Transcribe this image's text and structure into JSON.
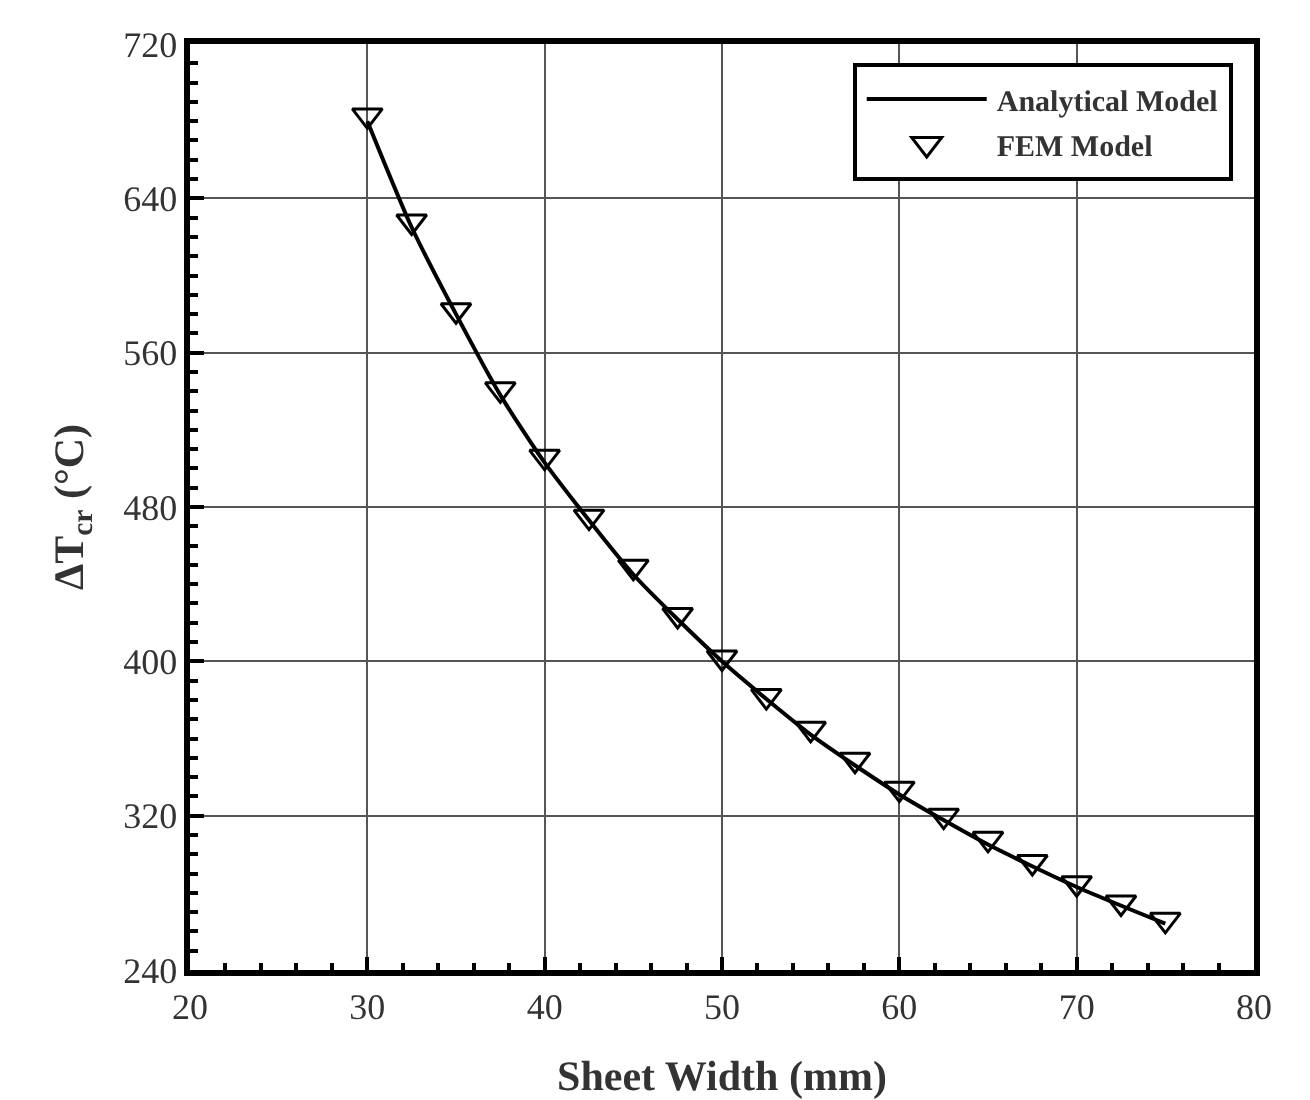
{
  "chart_data": {
    "type": "line",
    "xlabel": "Sheet Width (mm)",
    "ylabel": "ΔT$_{cr}$ (°C)",
    "xlim": [
      20,
      80
    ],
    "xticks": [
      20,
      30,
      40,
      50,
      60,
      70,
      80
    ],
    "ylim": [
      240,
      720
    ],
    "yticks": [
      240,
      320,
      400,
      480,
      560,
      640,
      720
    ],
    "grid": true,
    "legend": "top right",
    "series": [
      {
        "name": "Analytical Model",
        "color": "#000000",
        "marker": "none",
        "line_style": "solid",
        "x": [
          30,
          32.5,
          35,
          37.5,
          40,
          45,
          50,
          55,
          60,
          65,
          70,
          75
        ],
        "values": [
          680,
          625,
          580,
          538,
          503,
          445,
          400,
          362,
          331,
          305,
          283,
          264
        ]
      },
      {
        "name": "FEM Model",
        "type": "scatter",
        "color": "#000000",
        "marker": "triangle",
        "x": [
          30,
          32.5,
          35,
          37.5,
          40,
          42.5,
          45,
          47.5,
          50,
          52.5,
          55,
          57.5,
          60,
          62.5,
          65,
          67.5,
          70,
          72.5,
          75
        ],
        "values": [
          683,
          628,
          582,
          541,
          506,
          475,
          449,
          424,
          402,
          382,
          365,
          349,
          334,
          320,
          308,
          296,
          285,
          275,
          266
        ]
      }
    ]
  }
}
